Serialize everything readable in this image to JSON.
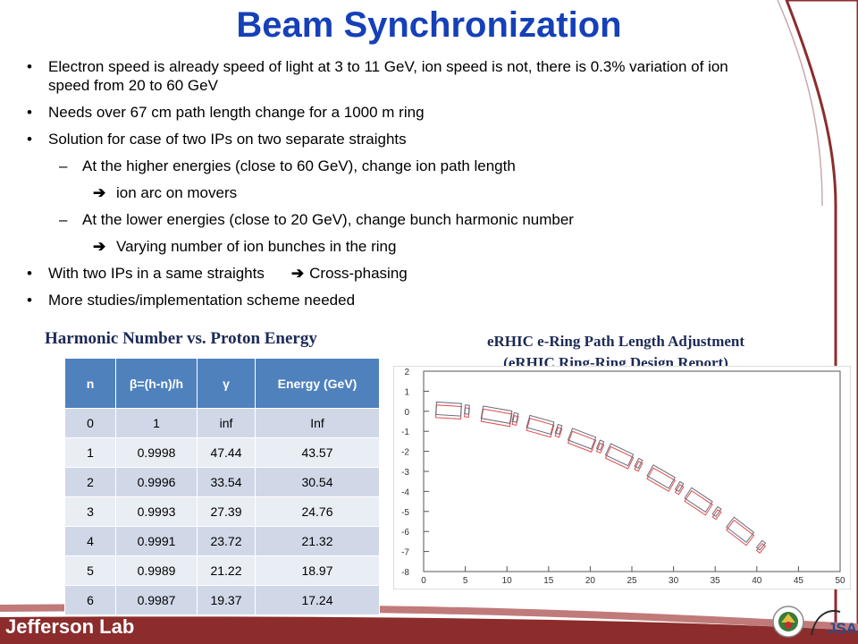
{
  "title": "Beam Synchronization",
  "bullets": {
    "b1": "Electron speed is already speed of light at 3 to 11 GeV, ion speed is not, there is 0.3% variation of ion speed from 20 to 60 GeV",
    "b2": "Needs over 67 cm path length change for a 1000 m ring",
    "b3": "Solution for case of two IPs on two separate straights",
    "s1": "At the higher energies (close to 60 GeV), change ion path length",
    "a1": "ion arc on movers",
    "s2": "At the lower energies (close to 20 GeV), change bunch harmonic number",
    "a2": "Varying number of ion bunches in the ring",
    "b4a": "With two IPs in a same straights",
    "b4b": "Cross-phasing",
    "b5": "More studies/implementation scheme needed",
    "arrow_glyph": "➔"
  },
  "table": {
    "title": "Harmonic Number vs. Proton Energy",
    "headers": [
      "n",
      "β=(h-n)/h",
      "γ",
      "Energy (GeV)"
    ],
    "rows": [
      [
        "0",
        "1",
        "inf",
        "Inf"
      ],
      [
        "1",
        "0.9998",
        "47.44",
        "43.57"
      ],
      [
        "2",
        "0.9996",
        "33.54",
        "30.54"
      ],
      [
        "3",
        "0.9993",
        "27.39",
        "24.76"
      ],
      [
        "4",
        "0.9991",
        "23.72",
        "21.32"
      ],
      [
        "5",
        "0.9989",
        "21.22",
        "18.97"
      ],
      [
        "6",
        "0.9987",
        "19.37",
        "17.24"
      ]
    ]
  },
  "plot": {
    "title1": "eRHIC e-Ring Path Length Adjustment",
    "title2": "(eRHIC Ring-Ring Design Report)",
    "x_ticks": [
      "0",
      "5",
      "10",
      "15",
      "20",
      "25",
      "30",
      "35",
      "40",
      "45",
      "50"
    ],
    "y_ticks": [
      "2",
      "1",
      "0",
      "-1",
      "-2",
      "-3",
      "-4",
      "-5",
      "-6",
      "-7",
      "-8"
    ],
    "colors": {
      "red": "#e24a4a",
      "gray": "#6a6a7a"
    }
  },
  "footer": {
    "logo_text": "Jefferson Lab",
    "jsa_text": "JSA"
  },
  "colors": {
    "title": "#1540b8",
    "table_header": "#4f81bd",
    "row_odd": "#d0d8e8",
    "row_even": "#e9edf4",
    "swoosh": "#8c2c2c"
  }
}
